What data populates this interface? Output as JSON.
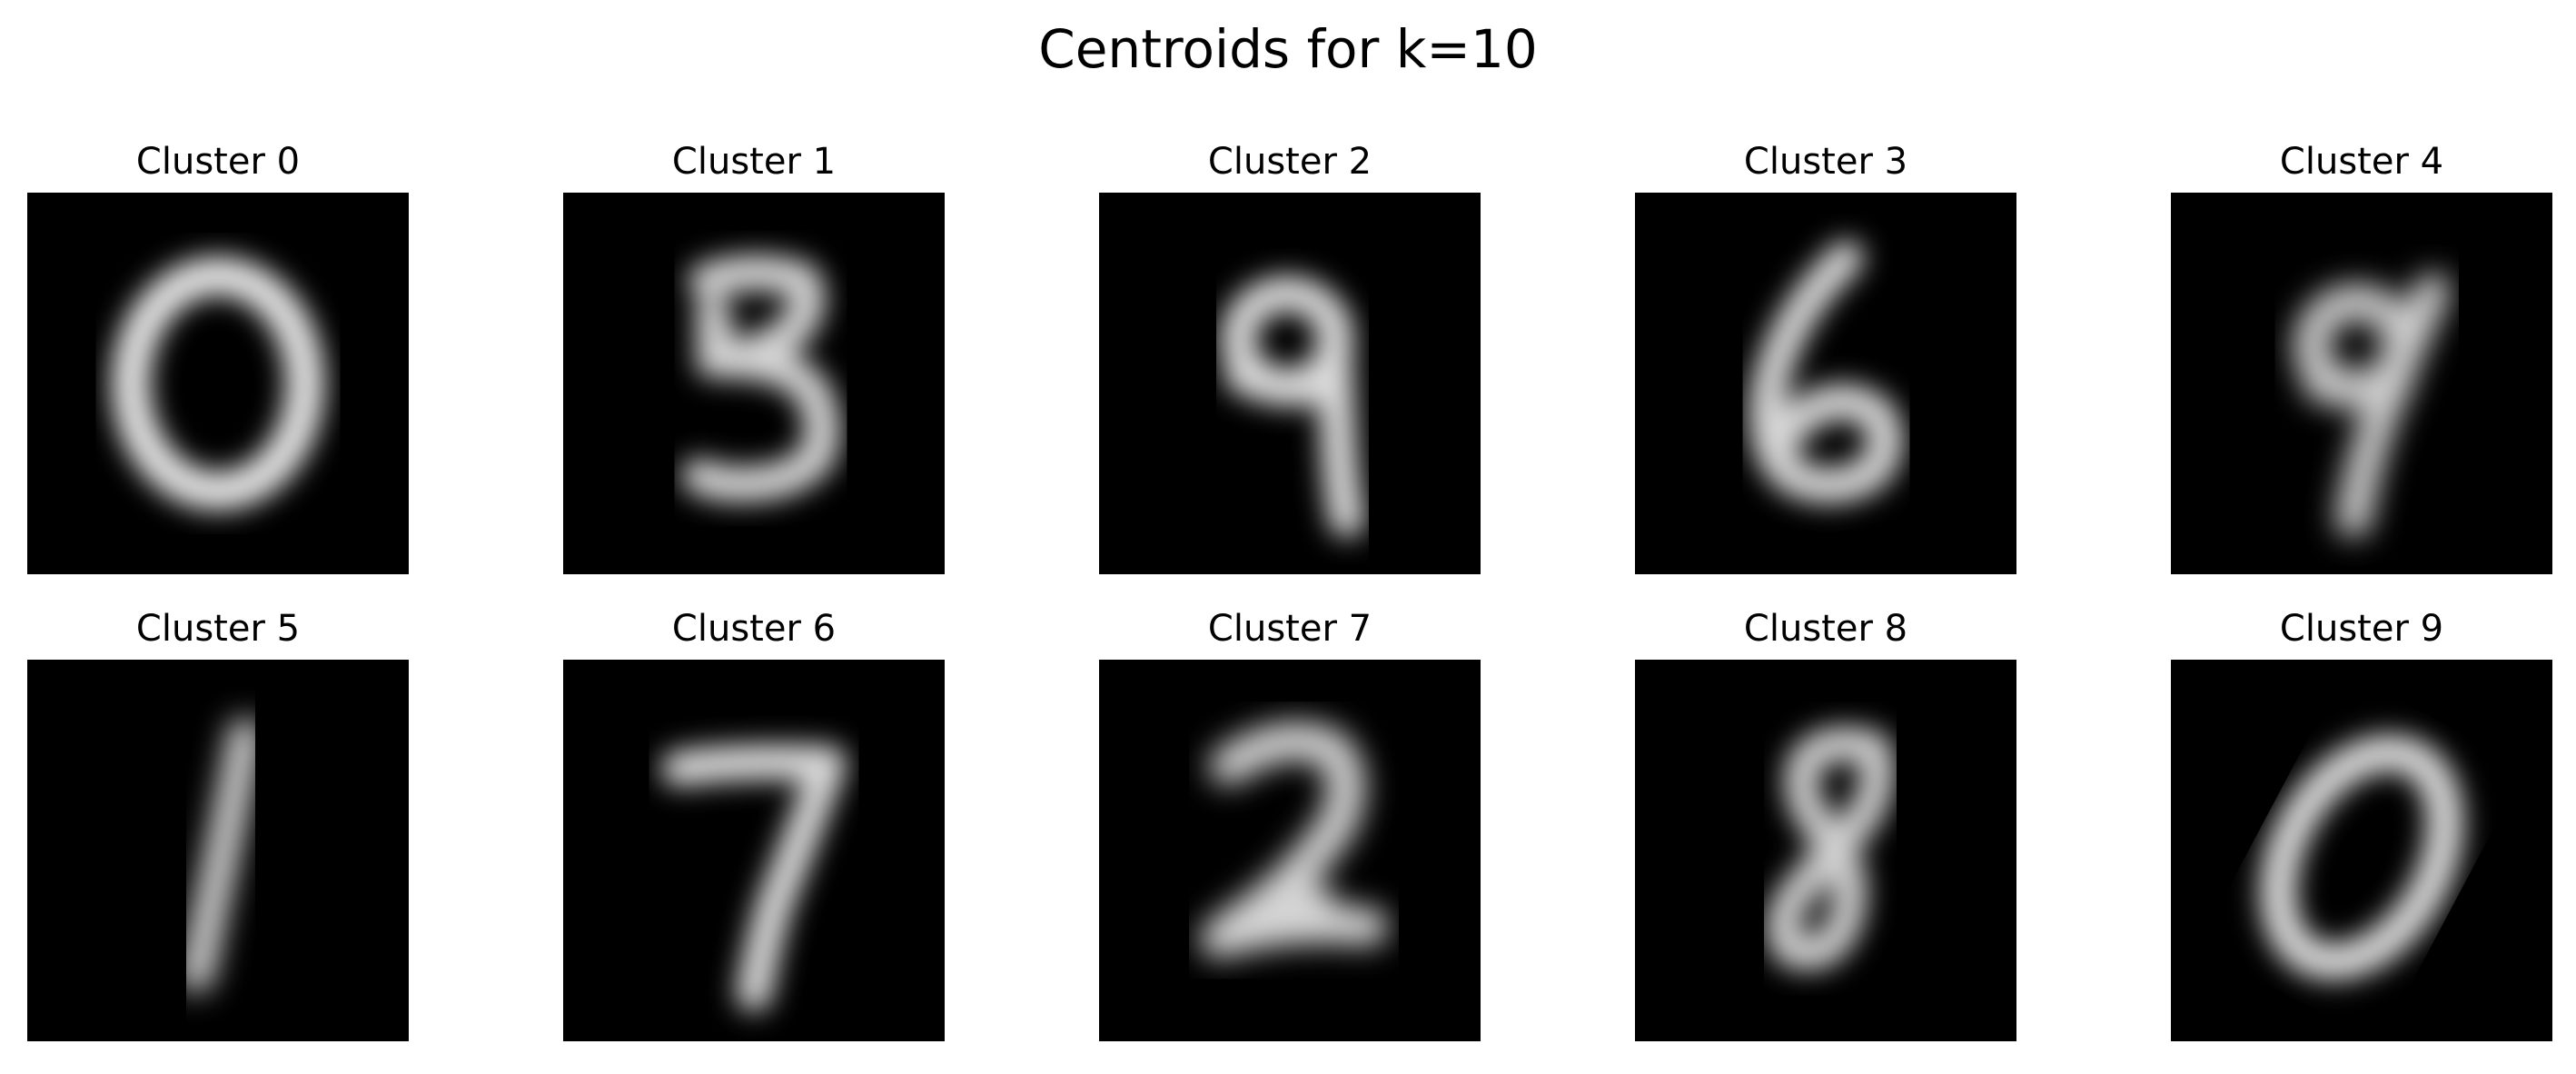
{
  "title": "Centroids for k=10",
  "clusters": [
    {
      "label": "Cluster 0",
      "digit": "0"
    },
    {
      "label": "Cluster 1",
      "digit": "3"
    },
    {
      "label": "Cluster 2",
      "digit": "9"
    },
    {
      "label": "Cluster 3",
      "digit": "6"
    },
    {
      "label": "Cluster 4",
      "digit": "9"
    },
    {
      "label": "Cluster 5",
      "digit": "1"
    },
    {
      "label": "Cluster 6",
      "digit": "7"
    },
    {
      "label": "Cluster 7",
      "digit": "2"
    },
    {
      "label": "Cluster 8",
      "digit": "8"
    },
    {
      "label": "Cluster 9",
      "digit": "0"
    }
  ],
  "colors": {
    "background": "#ffffff",
    "image_background": "#000000",
    "stroke": "#e8e8e8"
  }
}
